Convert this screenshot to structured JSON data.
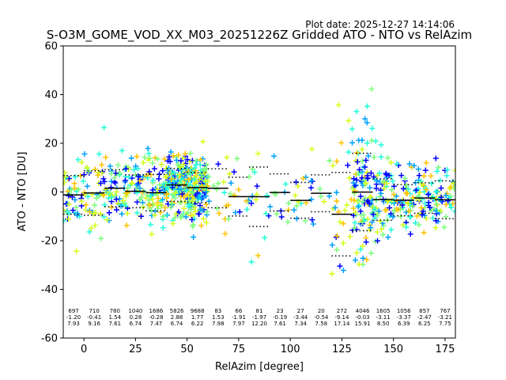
{
  "plot_date": "Plot date: 2025-12-27 14:14:06",
  "chart_data": {
    "type": "scatter",
    "title": "S-O3M_GOME_VOD_XX_M03_20251226Z Gridded ATO - NTO vs RelAzim",
    "xlabel": "RelAzim [degree]",
    "ylabel": "ATO - NTO [DU]",
    "xlim": [
      -10,
      180
    ],
    "ylim": [
      -60,
      60
    ],
    "xticks": [
      0,
      25,
      50,
      75,
      100,
      125,
      150,
      175
    ],
    "yticks": [
      -60,
      -40,
      -20,
      0,
      20,
      40,
      60
    ],
    "grid": false,
    "marker": "+",
    "colors": [
      "#0000ff",
      "#00a0ff",
      "#20ffd8",
      "#7aff7a",
      "#d4ff1a",
      "#ffc400"
    ],
    "bins": [
      {
        "x": -5,
        "count": "697",
        "mean": "-1.20",
        "std": "7.93",
        "mean_v": -1.2,
        "std_v": 7.93
      },
      {
        "x": 5,
        "count": "710",
        "mean": "-0.41",
        "std": "9.16",
        "mean_v": -0.41,
        "std_v": 9.16
      },
      {
        "x": 15,
        "count": "780",
        "mean": "1.54",
        "std": "7.61",
        "mean_v": 1.54,
        "std_v": 7.61
      },
      {
        "x": 25,
        "count": "1040",
        "mean": "0.28",
        "std": "6.74",
        "mean_v": 0.28,
        "std_v": 6.74
      },
      {
        "x": 35,
        "count": "1686",
        "mean": "-0.28",
        "std": "7.47",
        "mean_v": -0.28,
        "std_v": 7.47
      },
      {
        "x": 45,
        "count": "5826",
        "mean": "2.88",
        "std": "6.74",
        "mean_v": 2.88,
        "std_v": 6.74
      },
      {
        "x": 55,
        "count": "9688",
        "mean": "1.77",
        "std": "6.22",
        "mean_v": 1.77,
        "std_v": 6.22
      },
      {
        "x": 65,
        "count": "83",
        "mean": "1.53",
        "std": "7.98",
        "mean_v": 1.53,
        "std_v": 7.98
      },
      {
        "x": 75,
        "count": "66",
        "mean": "-1.91",
        "std": "7.97",
        "mean_v": -1.91,
        "std_v": 7.97
      },
      {
        "x": 85,
        "count": "81",
        "mean": "-1.97",
        "std": "12.20",
        "mean_v": -1.97,
        "std_v": 12.2
      },
      {
        "x": 95,
        "count": "23",
        "mean": "-0.19",
        "std": "7.61",
        "mean_v": -0.19,
        "std_v": 7.61
      },
      {
        "x": 105,
        "count": "27",
        "mean": "-3.44",
        "std": "7.34",
        "mean_v": -3.44,
        "std_v": 7.34
      },
      {
        "x": 115,
        "count": "20",
        "mean": "-0.54",
        "std": "7.58",
        "mean_v": -0.54,
        "std_v": 7.58
      },
      {
        "x": 125,
        "count": "272",
        "mean": "-9.14",
        "std": "17.14",
        "mean_v": -9.14,
        "std_v": 17.14
      },
      {
        "x": 135,
        "count": "4046",
        "mean": "-0.03",
        "std": "15.91",
        "mean_v": -0.03,
        "std_v": 15.91
      },
      {
        "x": 145,
        "count": "1605",
        "mean": "-3.11",
        "std": "8.50",
        "mean_v": -3.11,
        "std_v": 8.5
      },
      {
        "x": 155,
        "count": "1056",
        "mean": "-3.37",
        "std": "6.39",
        "mean_v": -3.37,
        "std_v": 6.39
      },
      {
        "x": 165,
        "count": "857",
        "mean": "-2.47",
        "std": "6.25",
        "mean_v": -2.47,
        "std_v": 6.25
      },
      {
        "x": 175,
        "count": "767",
        "mean": "-3.21",
        "std": "7.75",
        "mean_v": -3.21,
        "std_v": 7.75
      }
    ]
  }
}
